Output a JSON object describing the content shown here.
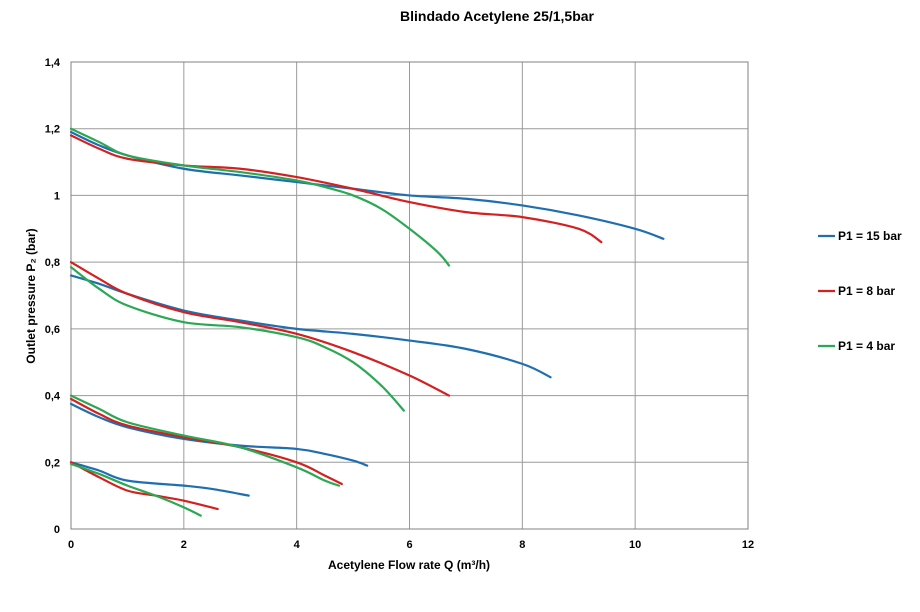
{
  "colors": {
    "P1_15": "#1f6fb0",
    "P1_8": "#d42020",
    "P1_4": "#2aa853"
  },
  "chart_data": {
    "type": "line",
    "title": "Blindado Acetylene 25/1,5bar",
    "xlabel": "Acetylene Flow rate Q (m³/h)",
    "ylabel": "Outlet pressure P₂ (bar)",
    "xlim": [
      0,
      12
    ],
    "ylim": [
      0,
      1.4
    ],
    "x_ticks": [
      "0",
      "2",
      "4",
      "6",
      "8",
      "10",
      "12"
    ],
    "y_ticks": [
      "0",
      "0,2",
      "0,4",
      "0,6",
      "0,8",
      "1",
      "1,2",
      "1,4"
    ],
    "grid": true,
    "legend_position": "right",
    "legend": [
      "P1 = 15 bar",
      "P1 = 8 bar",
      "P1 = 4 bar"
    ],
    "series": [
      {
        "name": "P1 = 15 bar",
        "set": "1.2",
        "color": "#1f6fb0",
        "points": [
          [
            0,
            1.19
          ],
          [
            0.5,
            1.15
          ],
          [
            1,
            1.12
          ],
          [
            2,
            1.08
          ],
          [
            3,
            1.06
          ],
          [
            4,
            1.04
          ],
          [
            5,
            1.02
          ],
          [
            6,
            1.0
          ],
          [
            7,
            0.99
          ],
          [
            8,
            0.97
          ],
          [
            9,
            0.94
          ],
          [
            10,
            0.9
          ],
          [
            10.5,
            0.87
          ]
        ]
      },
      {
        "name": "P1 = 8 bar",
        "set": "1.2",
        "color": "#d42020",
        "points": [
          [
            0,
            1.18
          ],
          [
            0.5,
            1.14
          ],
          [
            1,
            1.11
          ],
          [
            2,
            1.09
          ],
          [
            3,
            1.08
          ],
          [
            4,
            1.055
          ],
          [
            5,
            1.02
          ],
          [
            6,
            0.98
          ],
          [
            7,
            0.95
          ],
          [
            8,
            0.935
          ],
          [
            9,
            0.9
          ],
          [
            9.4,
            0.86
          ]
        ]
      },
      {
        "name": "P1 = 4 bar",
        "set": "1.2",
        "color": "#2aa853",
        "points": [
          [
            0,
            1.2
          ],
          [
            0.5,
            1.16
          ],
          [
            1,
            1.12
          ],
          [
            2,
            1.09
          ],
          [
            3,
            1.07
          ],
          [
            4,
            1.045
          ],
          [
            4.5,
            1.025
          ],
          [
            5,
            1.0
          ],
          [
            5.5,
            0.96
          ],
          [
            6,
            0.9
          ],
          [
            6.5,
            0.83
          ],
          [
            6.7,
            0.79
          ]
        ]
      },
      {
        "name": "P1 = 15 bar",
        "set": "0.8",
        "color": "#1f6fb0",
        "points": [
          [
            0,
            0.76
          ],
          [
            0.5,
            0.735
          ],
          [
            1,
            0.705
          ],
          [
            2,
            0.655
          ],
          [
            3,
            0.625
          ],
          [
            4,
            0.6
          ],
          [
            5,
            0.585
          ],
          [
            6,
            0.565
          ],
          [
            7,
            0.54
          ],
          [
            8,
            0.495
          ],
          [
            8.5,
            0.455
          ]
        ]
      },
      {
        "name": "P1 = 8 bar",
        "set": "0.8",
        "color": "#d42020",
        "points": [
          [
            0,
            0.8
          ],
          [
            0.5,
            0.75
          ],
          [
            1,
            0.705
          ],
          [
            2,
            0.65
          ],
          [
            3,
            0.62
          ],
          [
            4,
            0.585
          ],
          [
            5,
            0.53
          ],
          [
            6,
            0.46
          ],
          [
            6.7,
            0.4
          ]
        ]
      },
      {
        "name": "P1 = 4 bar",
        "set": "0.8",
        "color": "#2aa853",
        "points": [
          [
            0,
            0.785
          ],
          [
            0.5,
            0.72
          ],
          [
            1,
            0.67
          ],
          [
            2,
            0.62
          ],
          [
            3,
            0.605
          ],
          [
            4,
            0.575
          ],
          [
            4.5,
            0.545
          ],
          [
            5,
            0.5
          ],
          [
            5.5,
            0.43
          ],
          [
            5.9,
            0.355
          ]
        ]
      },
      {
        "name": "P1 = 15 bar",
        "set": "0.4",
        "color": "#1f6fb0",
        "points": [
          [
            0,
            0.375
          ],
          [
            0.5,
            0.335
          ],
          [
            1,
            0.305
          ],
          [
            2,
            0.27
          ],
          [
            3,
            0.25
          ],
          [
            4,
            0.24
          ],
          [
            4.5,
            0.225
          ],
          [
            5,
            0.205
          ],
          [
            5.25,
            0.19
          ]
        ]
      },
      {
        "name": "P1 = 8 bar",
        "set": "0.4",
        "color": "#d42020",
        "points": [
          [
            0,
            0.39
          ],
          [
            0.5,
            0.345
          ],
          [
            1,
            0.31
          ],
          [
            2,
            0.275
          ],
          [
            3,
            0.245
          ],
          [
            4,
            0.2
          ],
          [
            4.5,
            0.16
          ],
          [
            4.8,
            0.135
          ]
        ]
      },
      {
        "name": "P1 = 4 bar",
        "set": "0.4",
        "color": "#2aa853",
        "points": [
          [
            0,
            0.4
          ],
          [
            0.5,
            0.36
          ],
          [
            1,
            0.32
          ],
          [
            2,
            0.28
          ],
          [
            3,
            0.245
          ],
          [
            4,
            0.185
          ],
          [
            4.5,
            0.145
          ],
          [
            4.75,
            0.13
          ]
        ]
      },
      {
        "name": "P1 = 15 bar",
        "set": "0.2",
        "color": "#1f6fb0",
        "points": [
          [
            0,
            0.2
          ],
          [
            0.5,
            0.175
          ],
          [
            1,
            0.145
          ],
          [
            2,
            0.13
          ],
          [
            2.5,
            0.12
          ],
          [
            3.15,
            0.1
          ]
        ]
      },
      {
        "name": "P1 = 8 bar",
        "set": "0.2",
        "color": "#d42020",
        "points": [
          [
            0,
            0.2
          ],
          [
            0.5,
            0.155
          ],
          [
            1,
            0.115
          ],
          [
            1.5,
            0.1
          ],
          [
            2,
            0.085
          ],
          [
            2.6,
            0.06
          ]
        ]
      },
      {
        "name": "P1 = 4 bar",
        "set": "0.2",
        "color": "#2aa853",
        "points": [
          [
            0,
            0.195
          ],
          [
            0.5,
            0.165
          ],
          [
            1,
            0.13
          ],
          [
            1.5,
            0.1
          ],
          [
            2,
            0.065
          ],
          [
            2.3,
            0.04
          ]
        ]
      }
    ]
  }
}
